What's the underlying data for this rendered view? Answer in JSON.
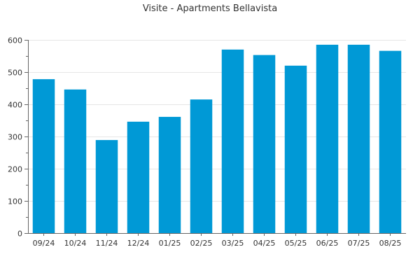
{
  "chart_data": {
    "type": "bar",
    "title": "Visite - Apartments Bellavista",
    "categories": [
      "09/24",
      "10/24",
      "11/24",
      "12/24",
      "01/25",
      "02/25",
      "03/25",
      "04/25",
      "05/25",
      "06/25",
      "07/25",
      "08/25"
    ],
    "values": [
      478,
      446,
      289,
      346,
      361,
      415,
      570,
      553,
      520,
      585,
      585,
      566
    ],
    "ylim": [
      0,
      600
    ],
    "yticks": [
      0,
      100,
      200,
      300,
      400,
      500,
      600
    ],
    "grid": true,
    "legend": "none",
    "bar_color": "#0099d6"
  }
}
